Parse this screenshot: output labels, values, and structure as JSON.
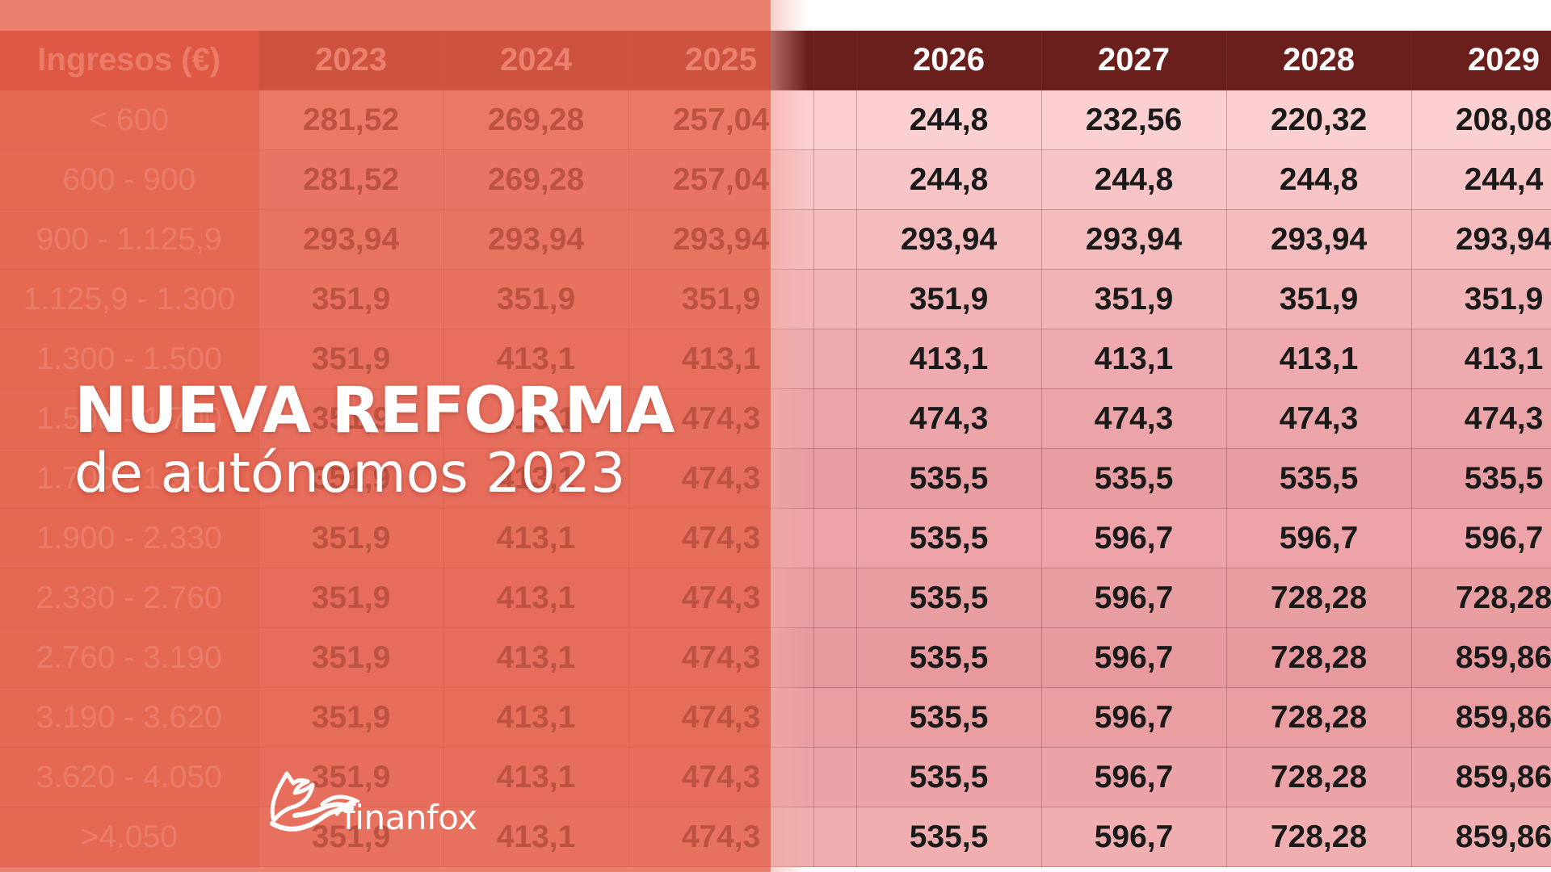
{
  "table": {
    "headers": [
      "Ingresos (€)",
      "2023",
      "2024",
      "2025",
      "",
      "2026",
      "2027",
      "2028",
      "2029"
    ],
    "rows": [
      {
        "range": "< 600",
        "v": [
          "281,52",
          "269,28",
          "257,04",
          "244,8",
          "232,56",
          "220,32",
          "208,08"
        ]
      },
      {
        "range": "600 - 900",
        "v": [
          "281,52",
          "269,28",
          "257,04",
          "244,8",
          "244,8",
          "244,8",
          "244,4"
        ]
      },
      {
        "range": "900 - 1.125,9",
        "v": [
          "293,94",
          "293,94",
          "293,94",
          "293,94",
          "293,94",
          "293,94",
          "293,94"
        ]
      },
      {
        "range": "1.125,9 - 1.300",
        "v": [
          "351,9",
          "351,9",
          "351,9",
          "351,9",
          "351,9",
          "351,9",
          "351,9"
        ]
      },
      {
        "range": "1.300 - 1.500",
        "v": [
          "351,9",
          "413,1",
          "413,1",
          "413,1",
          "413,1",
          "413,1",
          "413,1"
        ]
      },
      {
        "range": "1.500 - 1.700",
        "v": [
          "351,9",
          "413,1",
          "474,3",
          "474,3",
          "474,3",
          "474,3",
          "474,3"
        ]
      },
      {
        "range": "1.700 - 1.900",
        "v": [
          "351,9",
          "413,1",
          "474,3",
          "535,5",
          "535,5",
          "535,5",
          "535,5"
        ]
      },
      {
        "range": "1.900 - 2.330",
        "v": [
          "351,9",
          "413,1",
          "474,3",
          "535,5",
          "596,7",
          "596,7",
          "596,7"
        ]
      },
      {
        "range": "2.330 - 2.760",
        "v": [
          "351,9",
          "413,1",
          "474,3",
          "535,5",
          "596,7",
          "728,28",
          "728,28"
        ]
      },
      {
        "range": "2.760 - 3.190",
        "v": [
          "351,9",
          "413,1",
          "474,3",
          "535,5",
          "596,7",
          "728,28",
          "859,86"
        ]
      },
      {
        "range": "3.190 - 3.620",
        "v": [
          "351,9",
          "413,1",
          "474,3",
          "535,5",
          "596,7",
          "728,28",
          "859,86"
        ]
      },
      {
        "range": "3.620 - 4.050",
        "v": [
          "351,9",
          "413,1",
          "474,3",
          "535,5",
          "596,7",
          "728,28",
          "859,86"
        ]
      },
      {
        "range": ">4.050",
        "v": [
          "351,9",
          "413,1",
          "474,3",
          "535,5",
          "596,7",
          "728,28",
          "859,86"
        ]
      }
    ]
  },
  "headline": {
    "line1": "NUEVA REFORMA",
    "line2": "de autónomos 2023"
  },
  "logo": {
    "text": "finanfox",
    "icon": "fox-logo-icon"
  },
  "colors": {
    "overlay": "#e6604a",
    "header_dark": "#6b1f1c",
    "row_tint": "#f2b3b6",
    "text": "#1a1a1a",
    "white": "#ffffff"
  }
}
